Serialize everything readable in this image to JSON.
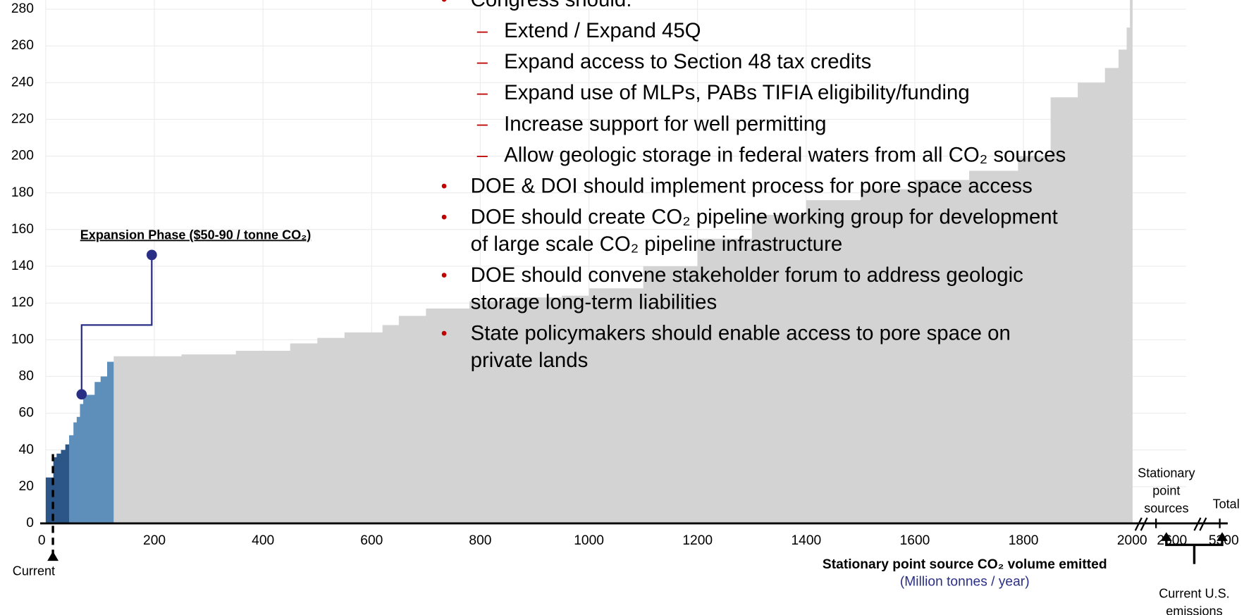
{
  "chart_data": {
    "type": "step-area",
    "xlim": [
      0,
      2000
    ],
    "ylim": [
      0,
      285
    ],
    "xticks": [
      0,
      200,
      400,
      600,
      800,
      1000,
      1200,
      1400,
      1600,
      1800,
      2000
    ],
    "yticks": [
      0,
      20,
      40,
      60,
      80,
      100,
      120,
      140,
      160,
      180,
      200,
      220,
      240,
      260,
      280
    ],
    "grid": true,
    "series": [
      {
        "color": "#2c5687",
        "bins": [
          0,
          14,
          20,
          28,
          36,
          45
        ],
        "values": [
          25,
          36,
          38,
          40,
          43
        ]
      },
      {
        "color": "#5e8fbb",
        "bins": [
          43,
          51,
          57,
          63,
          69,
          90,
          101,
          113,
          125
        ],
        "values": [
          48,
          55,
          58,
          65,
          70,
          77,
          80,
          88
        ]
      },
      {
        "color": "#d3d3d3",
        "bins": [
          125,
          250,
          350,
          450,
          500,
          550,
          620,
          650,
          700,
          780,
          850,
          950,
          1000,
          1100,
          1200,
          1300,
          1400,
          1500,
          1600,
          1700,
          1790,
          1850,
          1900,
          1950,
          1975,
          1990,
          1996,
          2000
        ],
        "values": [
          91,
          92,
          94,
          98,
          101,
          104,
          108,
          113,
          117,
          121,
          123,
          124,
          128,
          140,
          155,
          168,
          176,
          182,
          187,
          192,
          200,
          232,
          240,
          248,
          258,
          270,
          285
        ]
      }
    ],
    "x_label": "Stationary point source CO₂ volume emitted",
    "x_unit": "(Million tonnes / year)",
    "broken_axis_ticks": [
      "2600",
      "5300"
    ],
    "annotations": {
      "stationary": [
        "Stationary",
        "point",
        "sources"
      ],
      "total": "Total",
      "current": "Current",
      "us_emissions": [
        "Current U.S.",
        "emissions"
      ],
      "expansion": "Expansion Phase ($50-90 / tonne CO₂)"
    },
    "bullets": [
      {
        "level": 1,
        "lines": [
          "Congress should:"
        ]
      },
      {
        "level": 2,
        "lines": [
          "Extend / Expand 45Q"
        ]
      },
      {
        "level": 2,
        "lines": [
          "Expand access to Section 48 tax credits"
        ]
      },
      {
        "level": 2,
        "lines": [
          "Expand use of MLPs, PABs TIFIA eligibility/funding"
        ]
      },
      {
        "level": 2,
        "lines": [
          "Increase support for well permitting"
        ]
      },
      {
        "level": 2,
        "lines": [
          "Allow geologic storage in federal waters from all CO₂ sources"
        ]
      },
      {
        "level": 1,
        "lines": [
          "DOE & DOI should implement process for pore space access"
        ]
      },
      {
        "level": 1,
        "lines": [
          "DOE should create CO₂ pipeline working group for development",
          "of large scale CO₂ pipeline infrastructure"
        ]
      },
      {
        "level": 1,
        "lines": [
          "DOE should convene stakeholder forum to address geologic",
          "storage long-term liabilities"
        ]
      },
      {
        "level": 1,
        "lines": [
          "State policymakers should enable access to pore space on",
          "private lands"
        ]
      }
    ]
  }
}
